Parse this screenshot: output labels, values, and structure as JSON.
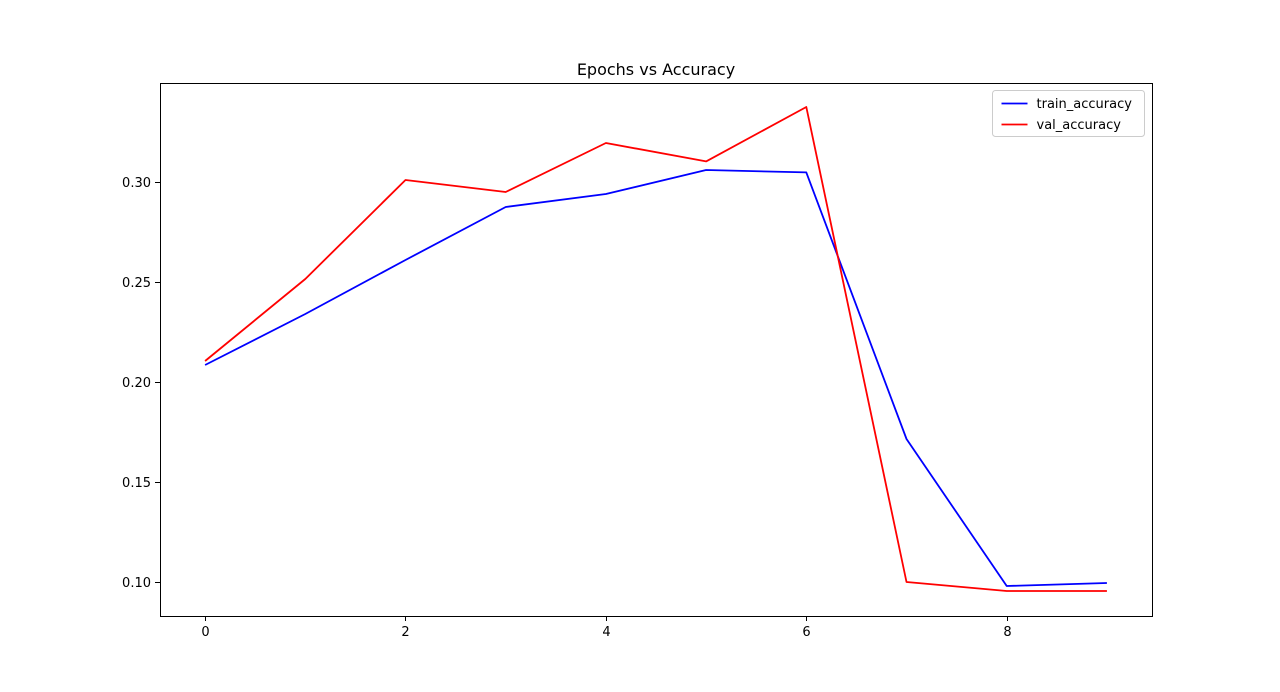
{
  "chart_data": {
    "type": "line",
    "title": "Epochs vs Accuracy",
    "xlabel": "",
    "ylabel": "",
    "x": [
      0,
      1,
      2,
      3,
      4,
      5,
      6,
      7,
      8,
      9
    ],
    "xlim": [
      -0.45,
      9.45
    ],
    "ylim": [
      0.083,
      0.3495
    ],
    "xticks": [
      0,
      2,
      4,
      6,
      8
    ],
    "xtick_labels": [
      "0",
      "2",
      "4",
      "6",
      "8"
    ],
    "yticks": [
      0.1,
      0.15,
      0.2,
      0.25,
      0.3
    ],
    "ytick_labels": [
      "0.10",
      "0.15",
      "0.20",
      "0.25",
      "0.30"
    ],
    "grid": false,
    "legend_position": "top-right",
    "series": [
      {
        "name": "train_accuracy",
        "color": "#0000ff",
        "values": [
          0.2085,
          0.234,
          0.261,
          0.2875,
          0.294,
          0.306,
          0.3048,
          0.1715,
          0.098,
          0.0995
        ]
      },
      {
        "name": "val_accuracy",
        "color": "#ff0000",
        "values": [
          0.2105,
          0.2515,
          0.301,
          0.295,
          0.3195,
          0.3103,
          0.3375,
          0.1,
          0.0955,
          0.0955
        ]
      }
    ]
  }
}
